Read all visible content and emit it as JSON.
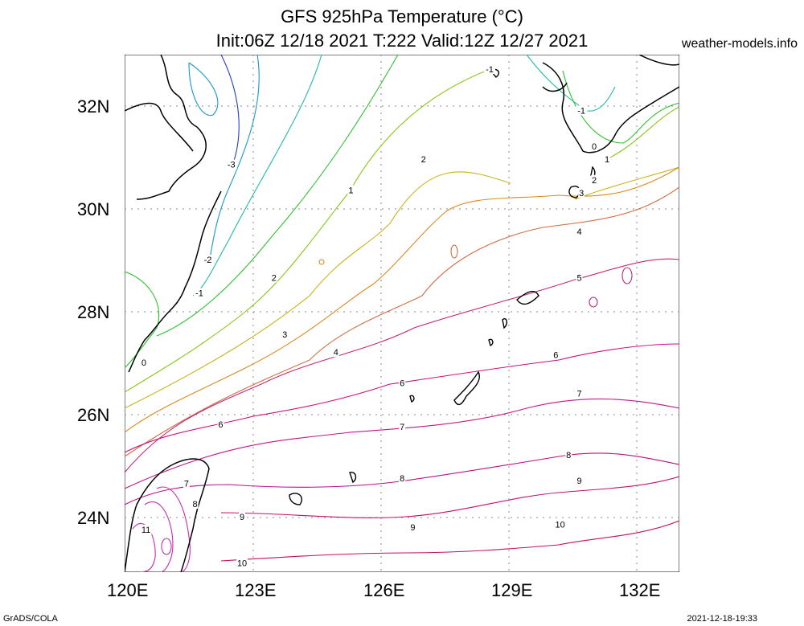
{
  "title_line1": "GFS 925hPa Temperature (°C)",
  "title_line2": "Init:06Z 12/18 2021 T:222 Valid:12Z 12/27 2021",
  "site": "weather-models.info",
  "footer_left": "GrADS/COLA",
  "footer_right": "2021-12-18-19:33",
  "lat_labels": [
    "32N",
    "30N",
    "28N",
    "26N",
    "24N"
  ],
  "lon_labels": [
    "120E",
    "123E",
    "126E",
    "129E",
    "132E"
  ],
  "colors": {
    "-3": "#2040c0",
    "-2": "#1898c8",
    "-1": "#20b8a8",
    "0": "#30c030",
    "1": "#88c818",
    "2": "#c8b418",
    "3": "#d88a20",
    "4": "#d06a40",
    "5": "#c02878",
    "6": "#c8107e",
    "7": "#c01888",
    "8": "#b81088",
    "9": "#c01070",
    "10": "#c01060",
    "11": "#c82ab0",
    "coast": "#000000",
    "grid": "#888888"
  },
  "contour_labels": [
    {
      "text": "-3",
      "lat": 30.85,
      "lon": 122.5
    },
    {
      "text": "-2",
      "lat": 29.0,
      "lon": 121.95
    },
    {
      "text": "-1",
      "lat": 28.35,
      "lon": 121.75
    },
    {
      "text": "-1",
      "lat": 31.9,
      "lon": 130.7
    },
    {
      "text": "-1",
      "lat": 32.7,
      "lon": 128.55
    },
    {
      "text": "0",
      "lat": 27.0,
      "lon": 120.45
    },
    {
      "text": "0",
      "lat": 31.2,
      "lon": 131.0
    },
    {
      "text": "1",
      "lat": 30.35,
      "lon": 125.3
    },
    {
      "text": "1",
      "lat": 30.95,
      "lon": 131.3
    },
    {
      "text": "2",
      "lat": 28.65,
      "lon": 123.5
    },
    {
      "text": "2",
      "lat": 30.95,
      "lon": 127.0
    },
    {
      "text": "2",
      "lat": 30.55,
      "lon": 131.0
    },
    {
      "text": "3",
      "lat": 27.55,
      "lon": 123.75
    },
    {
      "text": "3",
      "lat": 30.3,
      "lon": 130.7
    },
    {
      "text": "4",
      "lat": 27.2,
      "lon": 124.95
    },
    {
      "text": "4",
      "lat": 29.55,
      "lon": 130.65
    },
    {
      "text": "5",
      "lat": 28.65,
      "lon": 130.65
    },
    {
      "text": "6",
      "lat": 25.8,
      "lon": 122.25
    },
    {
      "text": "6",
      "lat": 26.6,
      "lon": 126.5
    },
    {
      "text": "6",
      "lat": 27.15,
      "lon": 130.1
    },
    {
      "text": "7",
      "lat": 24.65,
      "lon": 121.45
    },
    {
      "text": "7",
      "lat": 25.75,
      "lon": 126.5
    },
    {
      "text": "7",
      "lat": 26.4,
      "lon": 130.65
    },
    {
      "text": "8",
      "lat": 24.25,
      "lon": 121.65
    },
    {
      "text": "8",
      "lat": 24.75,
      "lon": 126.5
    },
    {
      "text": "8",
      "lat": 25.2,
      "lon": 130.4
    },
    {
      "text": "9",
      "lat": 24.0,
      "lon": 122.75
    },
    {
      "text": "9",
      "lat": 23.8,
      "lon": 126.75
    },
    {
      "text": "9",
      "lat": 24.7,
      "lon": 130.65
    },
    {
      "text": "10",
      "lat": 23.1,
      "lon": 122.75
    },
    {
      "text": "10",
      "lat": 23.85,
      "lon": 130.2
    },
    {
      "text": "11",
      "lat": 23.75,
      "lon": 120.5
    }
  ]
}
